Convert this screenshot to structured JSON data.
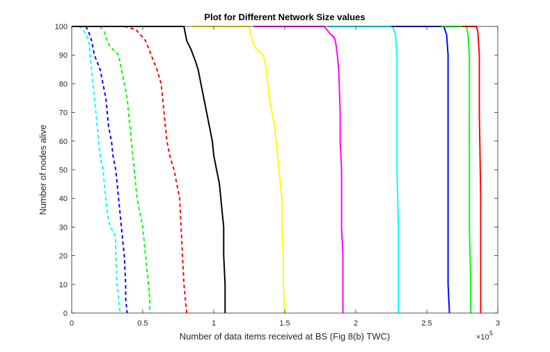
{
  "chart_data": {
    "type": "line",
    "title": "Plot for Different Network Size values",
    "xlabel": "Number of data items received at BS (Fig 8(b) TWC)",
    "ylabel": "Number of nodes alive",
    "x_multiplier_label": "×10",
    "x_multiplier_exponent": "5",
    "xlim": [
      0,
      3
    ],
    "ylim": [
      0,
      100
    ],
    "xticks": [
      "0",
      "0.5",
      "1",
      "1.5",
      "2",
      "2.5",
      "3"
    ],
    "yticks": [
      "0",
      "10",
      "20",
      "30",
      "40",
      "50",
      "60",
      "70",
      "80",
      "90",
      "100"
    ],
    "grid": false,
    "series": [
      {
        "color": "#00ffff",
        "dash": true,
        "points": [
          [
            0.05,
            100
          ],
          [
            0.08,
            99
          ],
          [
            0.1,
            97
          ],
          [
            0.12,
            95
          ],
          [
            0.13,
            90
          ],
          [
            0.14,
            85
          ],
          [
            0.15,
            80
          ],
          [
            0.16,
            75
          ],
          [
            0.17,
            70
          ],
          [
            0.18,
            65
          ],
          [
            0.19,
            60
          ],
          [
            0.2,
            55
          ],
          [
            0.22,
            50
          ],
          [
            0.23,
            45
          ],
          [
            0.24,
            40
          ],
          [
            0.25,
            35
          ],
          [
            0.27,
            30
          ],
          [
            0.3,
            28
          ],
          [
            0.31,
            25
          ],
          [
            0.31,
            20
          ],
          [
            0.32,
            10
          ],
          [
            0.33,
            5
          ],
          [
            0.34,
            0
          ]
        ]
      },
      {
        "color": "#0000ff",
        "dash": true,
        "points": [
          [
            0.1,
            100
          ],
          [
            0.12,
            98
          ],
          [
            0.14,
            95
          ],
          [
            0.16,
            90
          ],
          [
            0.2,
            85
          ],
          [
            0.22,
            80
          ],
          [
            0.24,
            75
          ],
          [
            0.25,
            70
          ],
          [
            0.26,
            65
          ],
          [
            0.28,
            60
          ],
          [
            0.29,
            55
          ],
          [
            0.31,
            50
          ],
          [
            0.32,
            45
          ],
          [
            0.33,
            40
          ],
          [
            0.34,
            35
          ],
          [
            0.35,
            30
          ],
          [
            0.36,
            25
          ],
          [
            0.37,
            20
          ],
          [
            0.38,
            10
          ],
          [
            0.38,
            5
          ],
          [
            0.39,
            0
          ]
        ]
      },
      {
        "color": "#00ff00",
        "dash": true,
        "points": [
          [
            0.2,
            100
          ],
          [
            0.23,
            98
          ],
          [
            0.25,
            95
          ],
          [
            0.27,
            93
          ],
          [
            0.33,
            90
          ],
          [
            0.35,
            85
          ],
          [
            0.37,
            80
          ],
          [
            0.39,
            75
          ],
          [
            0.4,
            70
          ],
          [
            0.41,
            65
          ],
          [
            0.42,
            60
          ],
          [
            0.44,
            50
          ],
          [
            0.46,
            40
          ],
          [
            0.48,
            35
          ],
          [
            0.5,
            30
          ],
          [
            0.51,
            25
          ],
          [
            0.52,
            20
          ],
          [
            0.53,
            15
          ],
          [
            0.54,
            10
          ],
          [
            0.55,
            5
          ],
          [
            0.55,
            0
          ]
        ]
      },
      {
        "color": "#ff0000",
        "dash": true,
        "points": [
          [
            0.37,
            100
          ],
          [
            0.45,
            99
          ],
          [
            0.52,
            95
          ],
          [
            0.56,
            90
          ],
          [
            0.6,
            85
          ],
          [
            0.63,
            80
          ],
          [
            0.64,
            75
          ],
          [
            0.65,
            70
          ],
          [
            0.66,
            65
          ],
          [
            0.67,
            60
          ],
          [
            0.69,
            55
          ],
          [
            0.72,
            50
          ],
          [
            0.74,
            45
          ],
          [
            0.76,
            40
          ],
          [
            0.77,
            30
          ],
          [
            0.78,
            20
          ],
          [
            0.79,
            10
          ],
          [
            0.8,
            5
          ],
          [
            0.81,
            0
          ]
        ]
      },
      {
        "color": "#000000",
        "dash": false,
        "points": [
          [
            0,
            100
          ],
          [
            0.79,
            100
          ],
          [
            0.81,
            95
          ],
          [
            0.84,
            92
          ],
          [
            0.87,
            88
          ],
          [
            0.89,
            85
          ],
          [
            0.91,
            80
          ],
          [
            0.93,
            75
          ],
          [
            0.95,
            70
          ],
          [
            0.97,
            65
          ],
          [
            0.99,
            60
          ],
          [
            1.0,
            55
          ],
          [
            1.02,
            50
          ],
          [
            1.04,
            45
          ],
          [
            1.05,
            40
          ],
          [
            1.06,
            35
          ],
          [
            1.07,
            30
          ],
          [
            1.07,
            20
          ],
          [
            1.08,
            10
          ],
          [
            1.08,
            0
          ]
        ]
      },
      {
        "color": "#ffff00",
        "dash": false,
        "points": [
          [
            0.85,
            100
          ],
          [
            1.25,
            100
          ],
          [
            1.27,
            95
          ],
          [
            1.3,
            92
          ],
          [
            1.35,
            90
          ],
          [
            1.37,
            85
          ],
          [
            1.39,
            75
          ],
          [
            1.41,
            70
          ],
          [
            1.43,
            65
          ],
          [
            1.44,
            60
          ],
          [
            1.45,
            55
          ],
          [
            1.46,
            50
          ],
          [
            1.48,
            40
          ],
          [
            1.48,
            30
          ],
          [
            1.49,
            20
          ],
          [
            1.49,
            10
          ],
          [
            1.5,
            0
          ]
        ]
      },
      {
        "color": "#ff00ff",
        "dash": false,
        "points": [
          [
            1.28,
            100
          ],
          [
            1.78,
            100
          ],
          [
            1.81,
            98
          ],
          [
            1.85,
            96
          ],
          [
            1.86,
            94
          ],
          [
            1.87,
            90
          ],
          [
            1.88,
            85
          ],
          [
            1.89,
            70
          ],
          [
            1.89,
            60
          ],
          [
            1.9,
            50
          ],
          [
            1.9,
            40
          ],
          [
            1.9,
            30
          ],
          [
            1.91,
            20
          ],
          [
            1.91,
            10
          ],
          [
            1.91,
            0
          ]
        ]
      },
      {
        "color": "#00ffff",
        "dash": false,
        "points": [
          [
            1.8,
            100
          ],
          [
            2.26,
            100
          ],
          [
            2.28,
            97
          ],
          [
            2.29,
            90
          ],
          [
            2.29,
            70
          ],
          [
            2.29,
            50
          ],
          [
            2.3,
            30
          ],
          [
            2.3,
            10
          ],
          [
            2.3,
            0
          ]
        ]
      },
      {
        "color": "#0000ff",
        "dash": false,
        "points": [
          [
            2.25,
            100
          ],
          [
            2.62,
            100
          ],
          [
            2.64,
            97
          ],
          [
            2.65,
            90
          ],
          [
            2.65,
            70
          ],
          [
            2.65,
            50
          ],
          [
            2.65,
            30
          ],
          [
            2.65,
            10
          ],
          [
            2.66,
            0
          ]
        ]
      },
      {
        "color": "#00ff00",
        "dash": false,
        "points": [
          [
            2.6,
            100
          ],
          [
            2.78,
            100
          ],
          [
            2.79,
            97
          ],
          [
            2.8,
            90
          ],
          [
            2.8,
            70
          ],
          [
            2.8,
            50
          ],
          [
            2.8,
            30
          ],
          [
            2.81,
            10
          ],
          [
            2.81,
            0
          ]
        ]
      },
      {
        "color": "#ff0000",
        "dash": false,
        "points": [
          [
            2.75,
            100
          ],
          [
            2.85,
            100
          ],
          [
            2.86,
            98
          ],
          [
            2.87,
            90
          ],
          [
            2.87,
            70
          ],
          [
            2.88,
            40
          ],
          [
            2.88,
            10
          ],
          [
            2.88,
            0
          ]
        ]
      }
    ]
  }
}
